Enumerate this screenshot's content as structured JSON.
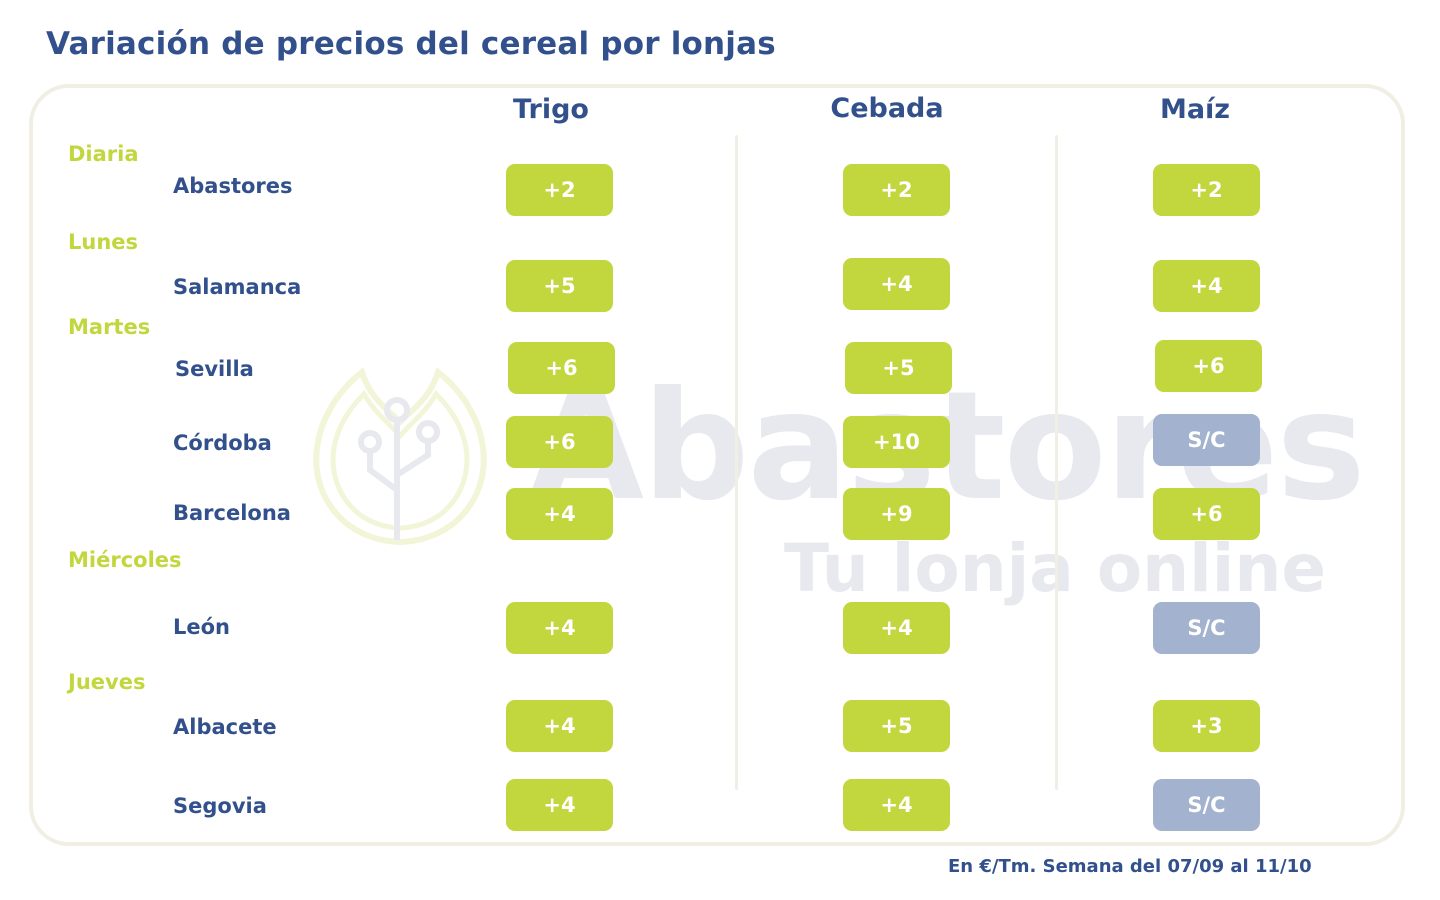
{
  "title": "Variación de precios del cereal por lonjas",
  "columns": [
    "Trigo",
    "Cebada",
    "Maíz"
  ],
  "groups": [
    "Diaria",
    "Lunes",
    "Martes",
    "Miércoles",
    "Jueves"
  ],
  "rows": [
    {
      "lonja": "Abastores",
      "group": "Diaria",
      "values": [
        "+2",
        "+2",
        "+2"
      ]
    },
    {
      "lonja": "Salamanca",
      "group": "Lunes",
      "values": [
        "+5",
        "+4",
        "+4"
      ]
    },
    {
      "lonja": "Sevilla",
      "group": "Martes",
      "values": [
        "+6",
        "+5",
        "+6"
      ]
    },
    {
      "lonja": "Córdoba",
      "group": "Martes",
      "values": [
        "+6",
        "+10",
        "S/C"
      ]
    },
    {
      "lonja": "Barcelona",
      "group": "Martes",
      "values": [
        "+4",
        "+9",
        "+6"
      ]
    },
    {
      "lonja": "León",
      "group": "Miércoles",
      "values": [
        "+4",
        "+4",
        "S/C"
      ]
    },
    {
      "lonja": "Albacete",
      "group": "Jueves",
      "values": [
        "+4",
        "+5",
        "+3"
      ]
    },
    {
      "lonja": "Segovia",
      "group": "Jueves",
      "values": [
        "+4",
        "+4",
        "S/C"
      ]
    }
  ],
  "watermark": {
    "brand": "Abastores",
    "tagline": "Tu lonja online"
  },
  "footnote": "En €/Tm. Semana del 07/09 al 11/10",
  "colors": {
    "title": "#32508c",
    "group": "#c2d63e",
    "increase_badge": "#c2d63e",
    "no_quote_badge": "#a3b3cf",
    "panel_border": "#f1eee4"
  },
  "icons": {
    "watermark_logo": "leaf-circuit-icon"
  }
}
